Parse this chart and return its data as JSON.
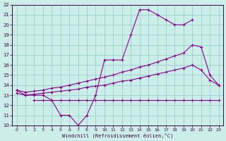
{
  "bg_color": "#cceee8",
  "grid_color": "#99cccc",
  "line_color": "#880088",
  "xlabel": "Windchill (Refroidissement éolien,°C)",
  "xlim": [
    -0.5,
    23.5
  ],
  "ylim": [
    10,
    22
  ],
  "xticks": [
    0,
    1,
    2,
    3,
    4,
    5,
    6,
    7,
    8,
    9,
    10,
    11,
    12,
    13,
    14,
    15,
    16,
    17,
    18,
    19,
    20,
    21,
    22,
    23
  ],
  "yticks": [
    10,
    11,
    12,
    13,
    14,
    15,
    16,
    17,
    18,
    19,
    20,
    21,
    22
  ],
  "curve_main": [
    13.5,
    13.0,
    13.0,
    13.0,
    12.5,
    11.0,
    11.0,
    10.0,
    11.0,
    13.0,
    16.5,
    16.5,
    16.5,
    19.0,
    21.5,
    21.5,
    21.0,
    20.5,
    20.0,
    20.0,
    20.5,
    null,
    null,
    null
  ],
  "curve_main_hours": [
    0,
    1,
    2,
    3,
    4,
    5,
    6,
    7,
    8,
    9,
    10,
    11,
    12,
    13,
    14,
    15,
    16,
    17,
    18,
    19,
    20
  ],
  "curve_main_vals": [
    13.5,
    13.0,
    13.0,
    13.0,
    12.5,
    11.0,
    11.0,
    10.0,
    11.0,
    13.0,
    16.5,
    16.5,
    16.5,
    19.0,
    21.5,
    21.5,
    21.0,
    20.5,
    20.0,
    20.0,
    20.5
  ],
  "curve_upper_hours": [
    0,
    1,
    2,
    3,
    4,
    5,
    6,
    7,
    8,
    9,
    10,
    11,
    12,
    13,
    14,
    15,
    16,
    17,
    18,
    19,
    20,
    21,
    22,
    23
  ],
  "curve_upper_vals": [
    13.5,
    13.3,
    13.4,
    13.5,
    13.7,
    13.8,
    14.0,
    14.2,
    14.4,
    14.6,
    14.8,
    15.0,
    15.3,
    15.5,
    15.8,
    16.0,
    16.3,
    16.6,
    16.9,
    17.2,
    18.0,
    17.8,
    15.0,
    14.0
  ],
  "curve_lower_hours": [
    0,
    1,
    2,
    3,
    4,
    5,
    6,
    7,
    8,
    9,
    10,
    11,
    12,
    13,
    14,
    15,
    16,
    17,
    18,
    19,
    20,
    21,
    22,
    23
  ],
  "curve_lower_vals": [
    13.2,
    13.0,
    13.1,
    13.2,
    13.3,
    13.4,
    13.5,
    13.6,
    13.8,
    13.9,
    14.0,
    14.2,
    14.4,
    14.5,
    14.7,
    14.9,
    15.1,
    15.3,
    15.5,
    15.7,
    16.0,
    15.5,
    14.5,
    14.0
  ],
  "curve_flat_hours": [
    2,
    3,
    4,
    5,
    6,
    7,
    8,
    9,
    10,
    11,
    12,
    13,
    14,
    15,
    16,
    17,
    18,
    19,
    20,
    21,
    22,
    23
  ],
  "curve_flat_vals": [
    12.5,
    12.5,
    12.5,
    12.5,
    12.5,
    12.5,
    12.5,
    12.5,
    12.5,
    12.5,
    12.5,
    12.5,
    12.5,
    12.5,
    12.5,
    12.5,
    12.5,
    12.5,
    12.5,
    12.5,
    12.5,
    12.5
  ]
}
